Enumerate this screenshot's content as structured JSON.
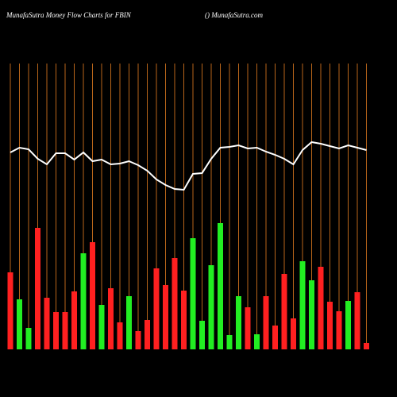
{
  "chart_data": {
    "type": "bar",
    "title": "MunafaSutra  Money Flow  Charts for FBIN",
    "subtitle": "() MunafaSutra.com",
    "values": [
      97,
      63,
      27,
      153,
      65,
      47,
      47,
      73,
      121,
      135,
      56,
      77,
      34,
      67,
      23,
      37,
      102,
      81,
      115,
      74,
      140,
      36,
      106,
      159,
      18,
      67,
      53,
      19,
      67,
      30,
      95,
      39,
      111,
      87,
      104,
      60,
      48,
      61,
      72,
      8
    ],
    "colors": [
      "#ff2020",
      "#22ee22",
      "#22ee22",
      "#ff2020",
      "#ff2020",
      "#ff2020",
      "#ff2020",
      "#ff2020",
      "#22ee22",
      "#ff2020",
      "#22ee22",
      "#ff2020",
      "#ff2020",
      "#22ee22",
      "#ff2020",
      "#ff2020",
      "#ff2020",
      "#ff2020",
      "#ff2020",
      "#ff2020",
      "#22ee22",
      "#22ee22",
      "#22ee22",
      "#22ee22",
      "#22ee22",
      "#22ee22",
      "#ff2020",
      "#22ee22",
      "#ff2020",
      "#ff2020",
      "#ff2020",
      "#ff2020",
      "#22ee22",
      "#22ee22",
      "#ff2020",
      "#ff2020",
      "#ff2020",
      "#22ee22",
      "#ff2020",
      "#ff2020"
    ],
    "line_values": [
      248,
      254,
      252,
      240,
      233,
      247,
      247,
      239,
      248,
      237,
      239,
      233,
      234,
      237,
      232,
      225,
      214,
      207,
      202,
      201,
      221,
      222,
      240,
      254,
      255,
      257,
      253,
      254,
      249,
      245,
      240,
      233,
      251,
      261,
      259,
      256,
      253,
      257,
      254,
      251
    ],
    "line_color": "#ffffff",
    "grid_color": "#b8651a",
    "ylim": [
      0,
      360
    ]
  }
}
